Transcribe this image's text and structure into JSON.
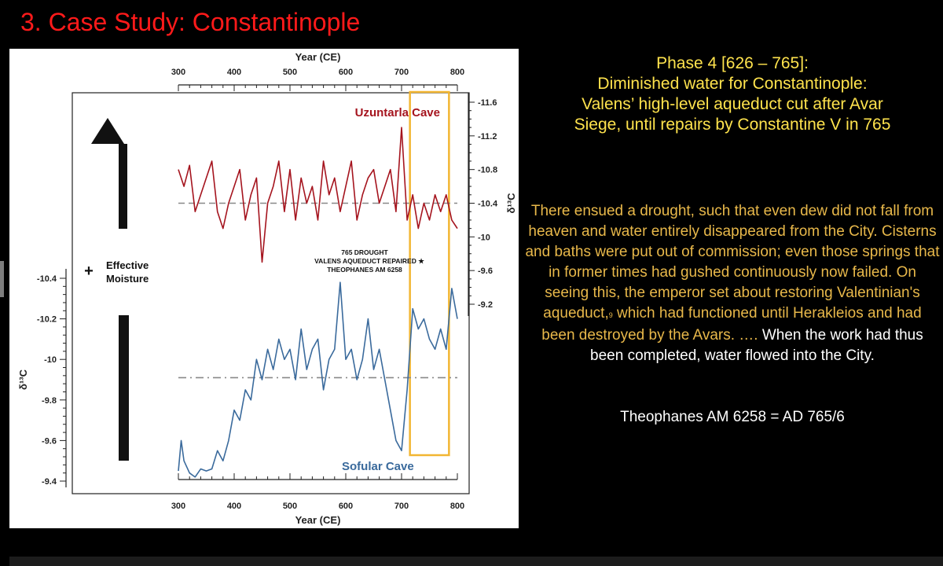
{
  "slide": {
    "title": "3. Case Study: Constantinople",
    "phase_lines": [
      "Phase 4 [626 – 765]:",
      "Diminished water for Constantinople:",
      "Valens’ high-level aqueduct cut after Avar",
      "Siege, until repairs by Constantine V in 765"
    ],
    "quote_part1": "There ensued a drought, such that even dew did not fall from heaven and water entirely disappeared from the City. Cisterns and baths were put out of commission; even those springs that in former times had gushed continuously now failed. On seeing this, the emperor set about restoring Valentinian's aqueduct,",
    "footnote_mark": "9",
    "quote_part2": " which had functioned until Herakleios and had been destroyed by the Avars. ….",
    "quote_part3": " When the work had thus been completed, water flowed into the City.",
    "citation": "Theophanes AM 6258 = AD 765/6",
    "colors": {
      "title": "#ff1a1a",
      "phase": "#ffe34d",
      "quote": "#e8b84a",
      "uzuntarla": "#a5141e",
      "sofular": "#3a6a9c",
      "highlight": "#f2b632"
    }
  },
  "chart_data": {
    "type": "line",
    "xlabel_top": "Year (CE)",
    "xlabel_bottom": "Year (CE)",
    "xlim": [
      300,
      800
    ],
    "xticks": [
      300,
      400,
      500,
      600,
      700,
      800
    ],
    "right_axis": {
      "label": "δ¹³C",
      "ticks": [
        "-11.6",
        "-11.2",
        "-10.8",
        "-10.4",
        "-10",
        "-9.6",
        "-9.2"
      ],
      "ylim": [
        -11.6,
        -9.2
      ]
    },
    "left_axis": {
      "label": "δ¹³C",
      "ticks": [
        "-10.4",
        "-10.2",
        "-10",
        "-9.8",
        "-9.6",
        "-9.4"
      ],
      "ylim": [
        -10.4,
        -9.4
      ]
    },
    "series": [
      {
        "name": "Uzuntarla Cave",
        "axis": "right",
        "mean": -10.4,
        "x": [
          300,
          310,
          320,
          330,
          340,
          350,
          360,
          370,
          380,
          390,
          400,
          410,
          420,
          430,
          440,
          450,
          460,
          470,
          480,
          490,
          500,
          510,
          520,
          530,
          540,
          550,
          560,
          570,
          580,
          590,
          600,
          610,
          620,
          630,
          640,
          650,
          660,
          670,
          680,
          690,
          700,
          710,
          720,
          730,
          740,
          750,
          760,
          770,
          780,
          790,
          800
        ],
        "values": [
          -10.8,
          -10.6,
          -10.85,
          -10.3,
          -10.5,
          -10.7,
          -10.9,
          -10.3,
          -10.1,
          -10.4,
          -10.6,
          -10.8,
          -10.2,
          -10.5,
          -10.7,
          -9.7,
          -10.4,
          -10.6,
          -10.9,
          -10.3,
          -10.8,
          -10.2,
          -10.7,
          -10.4,
          -10.6,
          -10.2,
          -10.9,
          -10.5,
          -10.7,
          -10.3,
          -10.6,
          -10.9,
          -10.2,
          -10.5,
          -10.7,
          -10.8,
          -10.4,
          -10.6,
          -10.8,
          -10.3,
          -11.3,
          -10.2,
          -10.5,
          -10.1,
          -10.4,
          -10.2,
          -10.5,
          -10.3,
          -10.5,
          -10.2,
          -10.1
        ]
      },
      {
        "name": "Sofular Cave",
        "axis": "left",
        "mean": -9.91,
        "x": [
          300,
          305,
          310,
          320,
          330,
          340,
          350,
          360,
          370,
          380,
          390,
          400,
          410,
          420,
          430,
          440,
          450,
          460,
          470,
          480,
          490,
          500,
          510,
          520,
          530,
          540,
          550,
          560,
          570,
          580,
          590,
          600,
          610,
          620,
          630,
          640,
          650,
          660,
          670,
          680,
          690,
          700,
          710,
          720,
          730,
          740,
          750,
          760,
          770,
          780,
          790,
          800
        ],
        "values": [
          -9.45,
          -9.6,
          -9.5,
          -9.44,
          -9.42,
          -9.46,
          -9.45,
          -9.46,
          -9.55,
          -9.5,
          -9.6,
          -9.75,
          -9.7,
          -9.85,
          -9.8,
          -10.0,
          -9.9,
          -10.05,
          -9.95,
          -10.1,
          -10.0,
          -10.05,
          -9.9,
          -10.15,
          -9.95,
          -10.05,
          -10.1,
          -9.85,
          -10.0,
          -10.05,
          -10.38,
          -10.0,
          -10.05,
          -9.9,
          -10.0,
          -10.2,
          -9.95,
          -10.05,
          -9.9,
          -9.75,
          -9.6,
          -9.55,
          -9.85,
          -10.25,
          -10.15,
          -10.2,
          -10.1,
          -10.05,
          -10.15,
          -10.05,
          -10.35,
          -10.2
        ]
      }
    ],
    "annotation_lines": [
      "765 Drought",
      "Valens Aqueduct Repaired ★",
      "Theophanes AM 6258"
    ],
    "highlight_range": [
      715,
      785
    ],
    "arrow_label": [
      "Effective",
      "Moisture"
    ],
    "arrow_plus": "+"
  }
}
